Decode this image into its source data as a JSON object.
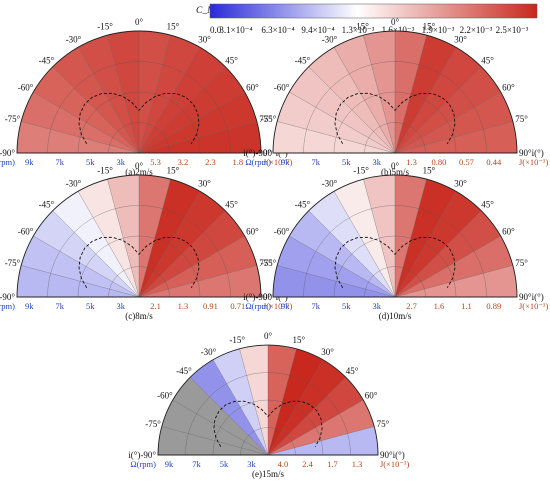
{
  "colorbar": {
    "label": "C_Mz",
    "ticks": [
      "0.0",
      "3.1×10⁻⁴",
      "6.3×10⁻⁴",
      "9.4×10⁻⁴",
      "1.3×10⁻³",
      "1.6×10⁻³",
      "1.9×10⁻³",
      "2.2×10⁻³",
      "2.5×10⁻³"
    ],
    "range": [
      0.0,
      0.0025
    ],
    "colors": {
      "low": "#2a2ad8",
      "mid": "#ffffff",
      "high": "#c8281e"
    }
  },
  "angle_ticks": [
    "-90°",
    "-75°",
    "-60°",
    "-45°",
    "-30°",
    "-15°",
    "0°",
    "15°",
    "30°",
    "45°",
    "60°",
    "75°",
    "90°"
  ],
  "axis_label": "i(°)",
  "rpm_label": "Ω(rpm)",
  "chart_data": [
    {
      "type": "heatmap",
      "caption": "(a)2m/s",
      "rpm_ticks": [
        "9k",
        "7k",
        "5k",
        "3k"
      ],
      "adv_ticks": [
        "5.3",
        "3.2",
        "2.3",
        "1.8"
      ],
      "adv_unit": "J(×10⁻²)",
      "fill": [
        0.78,
        0.82,
        0.85,
        0.88,
        0.9,
        0.92,
        0.9,
        0.92,
        0.94,
        0.95,
        0.96,
        0.97
      ]
    },
    {
      "type": "heatmap",
      "caption": "(b)5m/s",
      "rpm_ticks": [
        "9k",
        "7k",
        "5k",
        "3k"
      ],
      "adv_ticks": [
        "1.3",
        "0.80",
        "0.57",
        "0.44"
      ],
      "adv_unit": "J(×10⁻¹)",
      "fill": [
        0.55,
        0.58,
        0.6,
        0.62,
        0.66,
        0.72,
        0.82,
        0.95,
        0.92,
        0.9,
        0.88,
        0.86
      ]
    },
    {
      "type": "heatmap",
      "caption": "(c)8m/s",
      "rpm_ticks": [
        "9k",
        "7k",
        "5k",
        "3k"
      ],
      "adv_ticks": [
        "2.1",
        "1.3",
        "0.91",
        "0.71"
      ],
      "adv_unit": "J(×10⁻¹)",
      "fill": [
        0.3,
        0.32,
        0.36,
        0.42,
        0.52,
        0.62,
        0.8,
        0.98,
        0.96,
        0.92,
        0.86,
        0.8
      ]
    },
    {
      "type": "heatmap",
      "caption": "(d)10m/s",
      "rpm_ticks": [
        "9k",
        "7k",
        "5k",
        "3k"
      ],
      "adv_ticks": [
        "2.7",
        "1.6",
        "1.1",
        "0.89"
      ],
      "adv_unit": "J(×10⁻¹)",
      "fill": [
        0.22,
        0.25,
        0.3,
        0.38,
        0.5,
        0.6,
        0.8,
        0.98,
        0.96,
        0.9,
        0.82,
        0.72
      ]
    },
    {
      "type": "heatmap",
      "caption": "(e)15m/s",
      "rpm_ticks": [
        "9k",
        "7k",
        "5k",
        "3k"
      ],
      "adv_ticks": [
        "4.0",
        "2.4",
        "1.7",
        "1.3"
      ],
      "adv_unit": "J(×10⁻¹)",
      "fill": [
        null,
        null,
        null,
        0.22,
        0.35,
        0.55,
        0.85,
        1.0,
        0.98,
        0.92,
        0.8,
        0.3
      ]
    }
  ]
}
